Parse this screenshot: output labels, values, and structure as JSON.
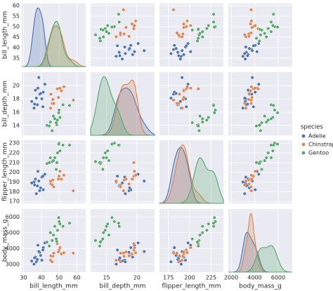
{
  "chart_data": {
    "type": "pairplot",
    "variables": [
      "bill_length_mm",
      "bill_depth_mm",
      "flipper_length_mm",
      "body_mass_g"
    ],
    "xlim": [
      [
        29,
        65
      ],
      [
        12.4,
        22.9
      ],
      [
        164.5,
        239.5
      ],
      [
        1760,
        7200
      ]
    ],
    "ylim": [
      [
        31,
        61
      ],
      [
        12.5,
        22
      ],
      [
        168,
        233
      ],
      [
        2500,
        6500
      ]
    ],
    "xticks": [
      [
        30,
        40,
        50,
        60
      ],
      [
        15,
        20
      ],
      [
        175,
        200,
        225
      ],
      [
        2000,
        4000,
        6000
      ]
    ],
    "yticks": [
      [
        35,
        40,
        45,
        50,
        55,
        60
      ],
      [
        14,
        16,
        18,
        20
      ],
      [
        170,
        180,
        190,
        200,
        210,
        220,
        230
      ],
      [
        3000,
        4000,
        5000,
        6000
      ]
    ],
    "legend_title": "species",
    "series": [
      {
        "name": "Adelie",
        "color": "#4c72b0",
        "values": [
          [
            36.7,
            39.1,
            40.3,
            37.8,
            41.1,
            35.9,
            38.6,
            42.0,
            34.6,
            39.6,
            37.2,
            40.9,
            36.2,
            38.1
          ],
          [
            19.3,
            18.7,
            18.0,
            17.1,
            19.0,
            16.6,
            21.2,
            20.2,
            17.6,
            18.8,
            18.1,
            16.8,
            17.2,
            19.6
          ],
          [
            193,
            181,
            195,
            186,
            182,
            190,
            191,
            198,
            189,
            184,
            178,
            196,
            187,
            201
          ],
          [
            3450,
            3750,
            3250,
            3300,
            4050,
            3000,
            3800,
            4350,
            3200,
            3550,
            3150,
            3900,
            3400,
            4200
          ]
        ]
      },
      {
        "name": "Chinstrap",
        "color": "#dd8452",
        "values": [
          [
            46.5,
            50.0,
            51.3,
            45.4,
            52.7,
            45.2,
            49.6,
            50.5,
            46.1,
            58.0,
            47.0,
            49.0
          ],
          [
            17.9,
            19.5,
            19.2,
            18.7,
            19.8,
            16.6,
            18.2,
            19.6,
            17.3,
            17.8,
            17.3,
            19.5
          ],
          [
            192,
            196,
            193,
            188,
            197,
            191,
            193,
            201,
            187,
            181,
            185,
            210
          ],
          [
            3500,
            3900,
            3650,
            3525,
            3725,
            3250,
            3775,
            4050,
            3150,
            3700,
            3700,
            4300
          ]
        ]
      },
      {
        "name": "Gentoo",
        "color": "#55a868",
        "values": [
          [
            46.1,
            50.0,
            48.7,
            50.5,
            45.1,
            49.1,
            47.6,
            43.2,
            52.2,
            46.8,
            55.9,
            44.5,
            48.4,
            49.8
          ],
          [
            13.2,
            16.3,
            14.1,
            15.2,
            14.5,
            14.8,
            15.0,
            14.0,
            17.1,
            15.4,
            17.0,
            13.9,
            14.4,
            15.9
          ],
          [
            211,
            230,
            210,
            222,
            215,
            220,
            215,
            209,
            228,
            212,
            228,
            210,
            203,
            229
          ],
          [
            4500,
            5700,
            4450,
            5550,
            5000,
            5150,
            5400,
            4400,
            5400,
            4850,
            5600,
            4150,
            4600,
            5950
          ]
        ]
      }
    ]
  }
}
